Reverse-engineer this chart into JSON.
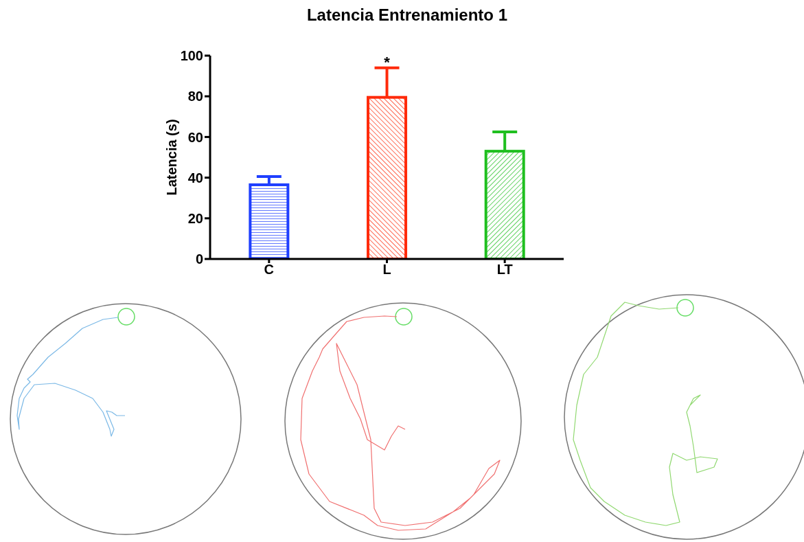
{
  "chart_data": {
    "type": "bar",
    "title": "Latencia Entrenamiento 1",
    "ylabel": "Latencia (s)",
    "categories": [
      "C",
      "L",
      "LT"
    ],
    "values": [
      36.5,
      79.5,
      53
    ],
    "colors": [
      "#1f3fff",
      "#ff2a0a",
      "#1fbf1f"
    ],
    "errors": [
      [
        36.5,
        40.5
      ],
      [
        79.5,
        94
      ],
      [
        53,
        62.5
      ]
    ],
    "ylim": [
      0,
      100
    ],
    "yticks": [
      0,
      20,
      40,
      60,
      80,
      100
    ],
    "annotations": [
      "*"
    ],
    "grid": false,
    "legend": false
  }
}
